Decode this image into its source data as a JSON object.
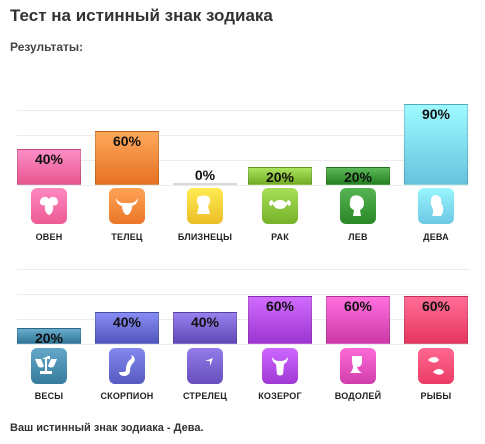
{
  "page": {
    "title": "Тест на истинный знак зодиака",
    "subtitle": "Результаты:",
    "footer": "Ваш истинный знак зодиака - Дева."
  },
  "chart_data": [
    {
      "type": "bar",
      "categories": [
        "ОВЕН",
        "ТЕЛЕЦ",
        "БЛИЗНЕЦЫ",
        "РАК",
        "ЛЕВ",
        "ДЕВА"
      ],
      "values": [
        40,
        60,
        0,
        20,
        20,
        90
      ],
      "labels": [
        "40%",
        "60%",
        "0%",
        "20%",
        "20%",
        "90%"
      ],
      "ylim": [
        0,
        100
      ],
      "colors": [
        "#ff6fa8",
        "#ff8a3c",
        "#ffd23a",
        "#8cc63f",
        "#3e9b3a",
        "#7fdcf7"
      ],
      "icons": [
        "ram-icon",
        "bull-icon",
        "twins-icon",
        "crab-icon",
        "lion-icon",
        "maiden-icon"
      ]
    },
    {
      "type": "bar",
      "categories": [
        "ВЕСЫ",
        "СКОРПИОН",
        "СТРЕЛЕЦ",
        "КОЗЕРОГ",
        "ВОДОЛЕЙ",
        "РЫБЫ"
      ],
      "values": [
        20,
        40,
        40,
        60,
        60,
        60
      ],
      "labels": [
        "20%",
        "40%",
        "40%",
        "60%",
        "60%",
        "60%"
      ],
      "ylim": [
        0,
        100
      ],
      "colors": [
        "#4a8fb0",
        "#6a6fd6",
        "#7a63d0",
        "#b44ee8",
        "#e552c0",
        "#ff4f78"
      ],
      "icons": [
        "scales-icon",
        "scorpion-icon",
        "archer-icon",
        "goat-icon",
        "water-bearer-icon",
        "fish-icon"
      ]
    }
  ]
}
